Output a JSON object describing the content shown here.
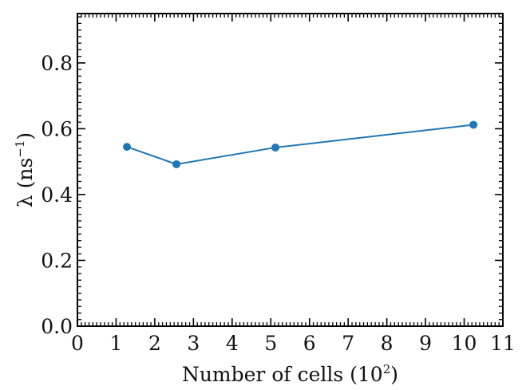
{
  "chart_data": {
    "type": "line",
    "xlabel": "Number of cells (10",
    "xlabel_sup": "2",
    "xlabel_end": ")",
    "ylabel": "λ (ns",
    "ylabel_sup": "−1",
    "ylabel_end": ")",
    "xlim": [
      0,
      11
    ],
    "ylim": [
      0.0,
      0.95
    ],
    "xticks": [
      "0",
      "1",
      "2",
      "3",
      "4",
      "5",
      "6",
      "7",
      "8",
      "9",
      "10",
      "11"
    ],
    "yticks": [
      "0.0",
      "0.2",
      "0.4",
      "0.6",
      "0.8"
    ],
    "grid": false,
    "series": [
      {
        "color": "#1f77b4",
        "x": [
          1.28,
          2.56,
          5.12,
          10.24
        ],
        "y": [
          0.545,
          0.492,
          0.543,
          0.612
        ]
      }
    ]
  }
}
